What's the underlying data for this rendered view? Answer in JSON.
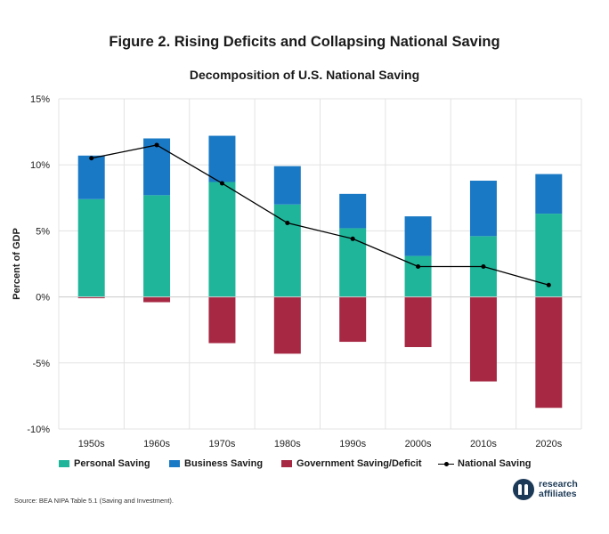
{
  "chart_data": {
    "type": "bar",
    "stacked": true,
    "title": "Figure 2. Rising Deficits and Collapsing National Saving",
    "subtitle": "Decomposition of U.S. National Saving",
    "ylabel": "Percent of GDP",
    "categories": [
      "1950s",
      "1960s",
      "1970s",
      "1980s",
      "1990s",
      "2000s",
      "2010s",
      "2020s"
    ],
    "ylim": [
      -10,
      15
    ],
    "yticks": [
      -10,
      -5,
      0,
      5,
      10,
      15
    ],
    "ytick_labels": [
      "-10%",
      "-5%",
      "0%",
      "5%",
      "10%",
      "15%"
    ],
    "grid": true,
    "legend_position": "bottom",
    "series": [
      {
        "name": "Personal Saving",
        "kind": "bar",
        "color": "#1fb59a",
        "values": [
          7.4,
          7.7,
          8.7,
          7.0,
          5.2,
          3.1,
          4.6,
          6.3
        ]
      },
      {
        "name": "Business Saving",
        "kind": "bar",
        "color": "#1a79c5",
        "values": [
          3.3,
          4.3,
          3.5,
          2.9,
          2.6,
          3.0,
          4.2,
          3.0
        ]
      },
      {
        "name": "Government Saving/Deficit",
        "kind": "bar",
        "color": "#a62843",
        "values": [
          -0.1,
          -0.4,
          -3.5,
          -4.3,
          -3.4,
          -3.8,
          -6.4,
          -8.4
        ]
      },
      {
        "name": "National Saving",
        "kind": "line",
        "color": "#000000",
        "values": [
          10.5,
          11.5,
          8.6,
          5.6,
          4.4,
          2.3,
          2.3,
          0.9
        ]
      }
    ]
  },
  "source": "Source: BEA NIPA Table 5.1 (Saving and Investment).",
  "logo": {
    "line1": "research",
    "line2": "affiliates"
  }
}
